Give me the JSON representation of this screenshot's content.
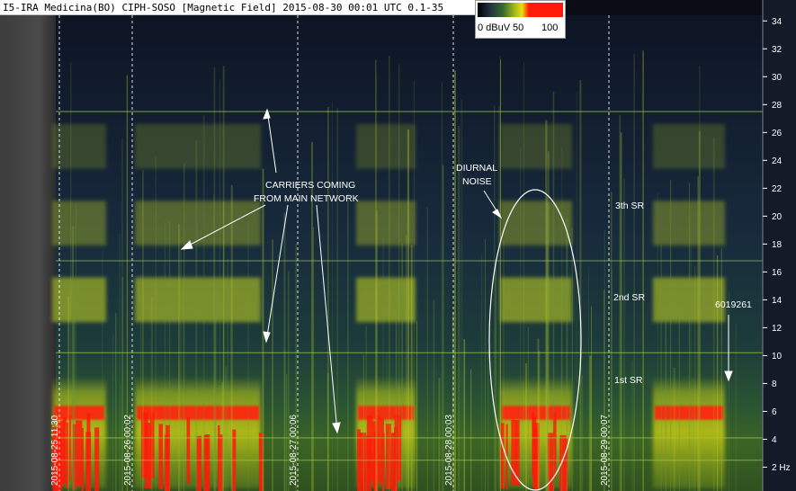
{
  "window": {
    "title": "I5-IRA Medicina(BO) CIPH-SOSO [Magnetic Field] 2015-08-30 00:01 UTC 0.1-35"
  },
  "colorbar": {
    "labels": [
      "0 dBuV",
      "50",
      "100"
    ],
    "stops": [
      "#000000",
      "#203040",
      "#3a6a30",
      "#9ab21a",
      "#e8e010",
      "#ff1a0a"
    ]
  },
  "chart_data": {
    "type": "heatmap",
    "title": "I5-IRA Medicina(BO) CIPH-SOSO [Magnetic Field] 2015-08-30 00:01 UTC 0.1-35",
    "ylabel": "Hz",
    "ylim": [
      0,
      35
    ],
    "y_ticks": [
      2,
      4,
      6,
      8,
      10,
      12,
      14,
      16,
      18,
      20,
      22,
      24,
      26,
      28,
      30,
      32,
      34
    ],
    "y_tick_labels": [
      "2 Hz",
      "4",
      "6",
      "8",
      "10",
      "12",
      "14",
      "16",
      "18",
      "20",
      "22",
      "24",
      "26",
      "28",
      "30",
      "32",
      "34"
    ],
    "day_markers": [
      "2015-08-25 11:30",
      "2015-08-26 00:02",
      "2015-08-27 00:06",
      "2015-08-28 00:03",
      "2015-08-29 00:07"
    ],
    "carrier_lines_hz": [
      2.5,
      4.1,
      10.2,
      16.8,
      27.5
    ],
    "annotations": [
      {
        "text": "CARRIERS COMING",
        "role": "carriers-1"
      },
      {
        "text": "FROM MAIN NETWORK",
        "role": "carriers-2"
      },
      {
        "text": "DIURNAL",
        "role": "diurnal-1"
      },
      {
        "text": "NOISE",
        "role": "diurnal-2"
      },
      {
        "text": "3th SR",
        "role": "sr3",
        "hz": 20.5
      },
      {
        "text": "2nd SR",
        "role": "sr2",
        "hz": 14
      },
      {
        "text": "1st SR",
        "role": "sr1",
        "hz": 7.8
      },
      {
        "text": "6019261",
        "role": "id"
      }
    ],
    "colormap_db": [
      0,
      50,
      100
    ]
  }
}
